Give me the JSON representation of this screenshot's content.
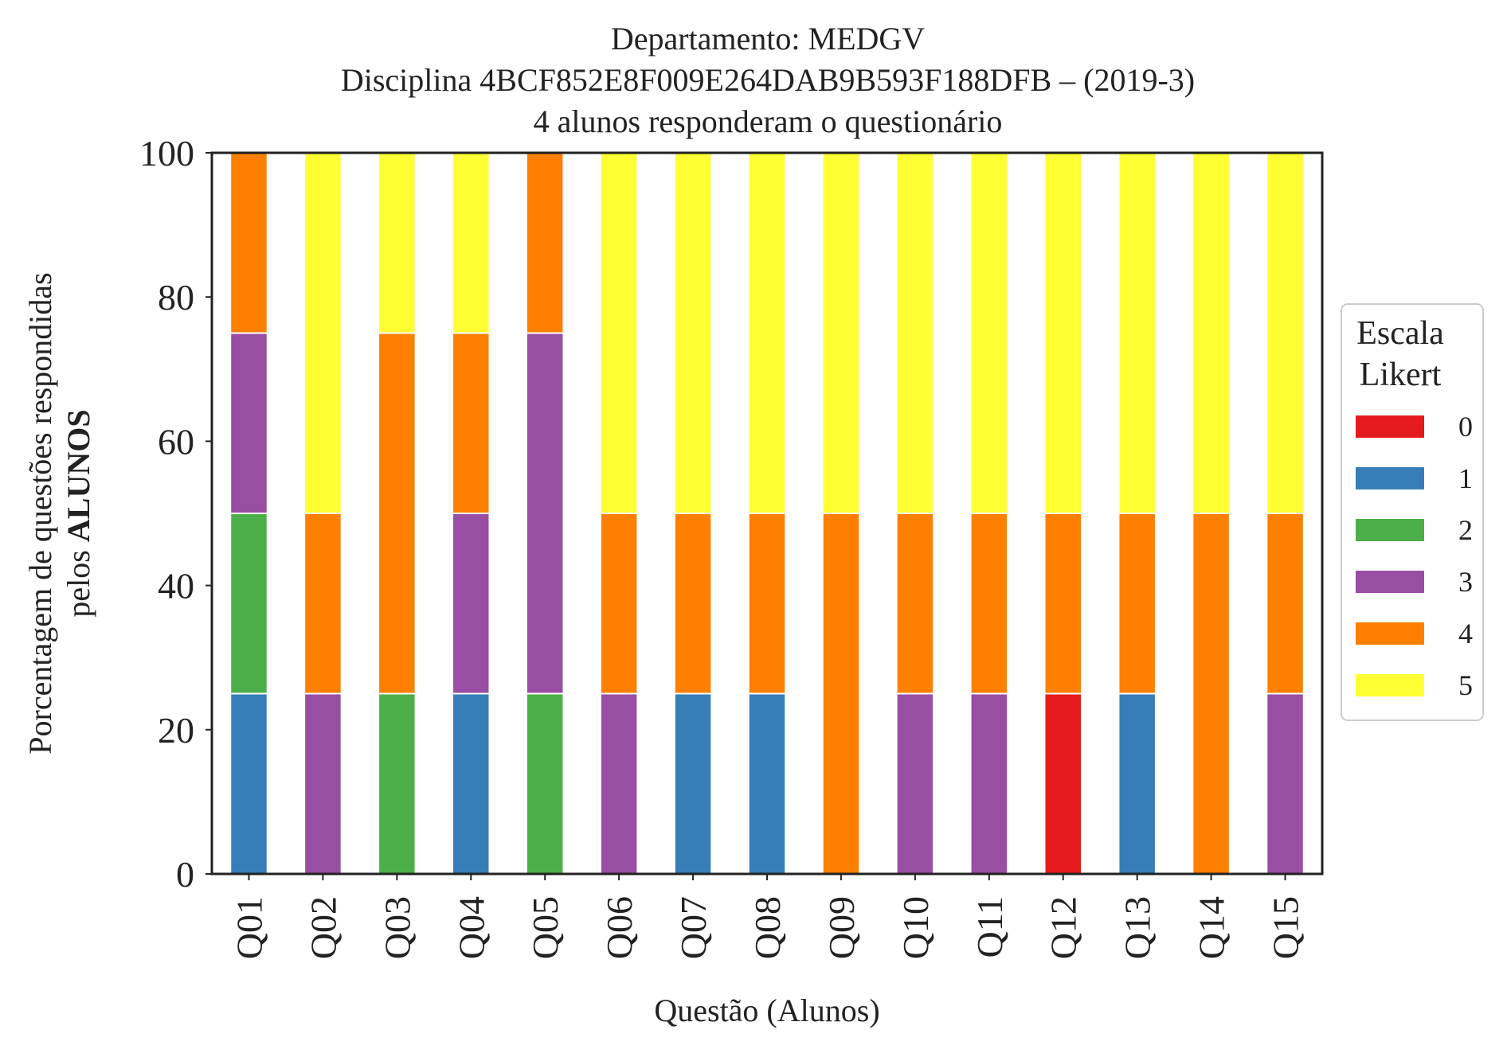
{
  "chart_data": {
    "type": "bar",
    "stacked": true,
    "title": {
      "line1": "Departamento: MEDGV",
      "line2": "Disciplina 4BCF852E8F009E264DAB9B593F188DFB – (2019-3)",
      "line3": "4 alunos responderam o questionário"
    },
    "xlabel": "Questão (Alunos)",
    "ylabel": {
      "line1": "Porcentagem de questões respondidas",
      "line2_prefix": "pelos ",
      "line2_bold": "ALUNOS"
    },
    "ylim": [
      0,
      100
    ],
    "yticks": [
      "0",
      "20",
      "40",
      "60",
      "80",
      "100"
    ],
    "grid": false,
    "legend": {
      "title_line1": "Escala",
      "title_line2": "Likert",
      "placement": "right"
    },
    "categories": [
      "Q01",
      "Q02",
      "Q03",
      "Q04",
      "Q05",
      "Q06",
      "Q07",
      "Q08",
      "Q09",
      "Q10",
      "Q11",
      "Q12",
      "Q13",
      "Q14",
      "Q15"
    ],
    "series": [
      {
        "name": "0",
        "color": "#e41a1c",
        "values": [
          0,
          0,
          0,
          0,
          0,
          0,
          0,
          0,
          0,
          0,
          0,
          25,
          0,
          0,
          0
        ]
      },
      {
        "name": "1",
        "color": "#377eb8",
        "values": [
          25,
          0,
          0,
          25,
          0,
          0,
          25,
          25,
          0,
          0,
          0,
          0,
          25,
          0,
          0
        ]
      },
      {
        "name": "2",
        "color": "#4daf4a",
        "values": [
          25,
          0,
          25,
          0,
          25,
          0,
          0,
          0,
          0,
          0,
          0,
          0,
          0,
          0,
          0
        ]
      },
      {
        "name": "3",
        "color": "#984ea3",
        "values": [
          25,
          25,
          0,
          25,
          50,
          25,
          0,
          0,
          0,
          25,
          25,
          0,
          0,
          0,
          25
        ]
      },
      {
        "name": "4",
        "color": "#ff7f00",
        "values": [
          25,
          25,
          50,
          25,
          25,
          25,
          25,
          25,
          50,
          25,
          25,
          25,
          25,
          50,
          25
        ]
      },
      {
        "name": "5",
        "color": "#ffff33",
        "values": [
          0,
          50,
          25,
          25,
          0,
          50,
          50,
          50,
          50,
          50,
          50,
          50,
          50,
          50,
          50
        ]
      }
    ]
  }
}
